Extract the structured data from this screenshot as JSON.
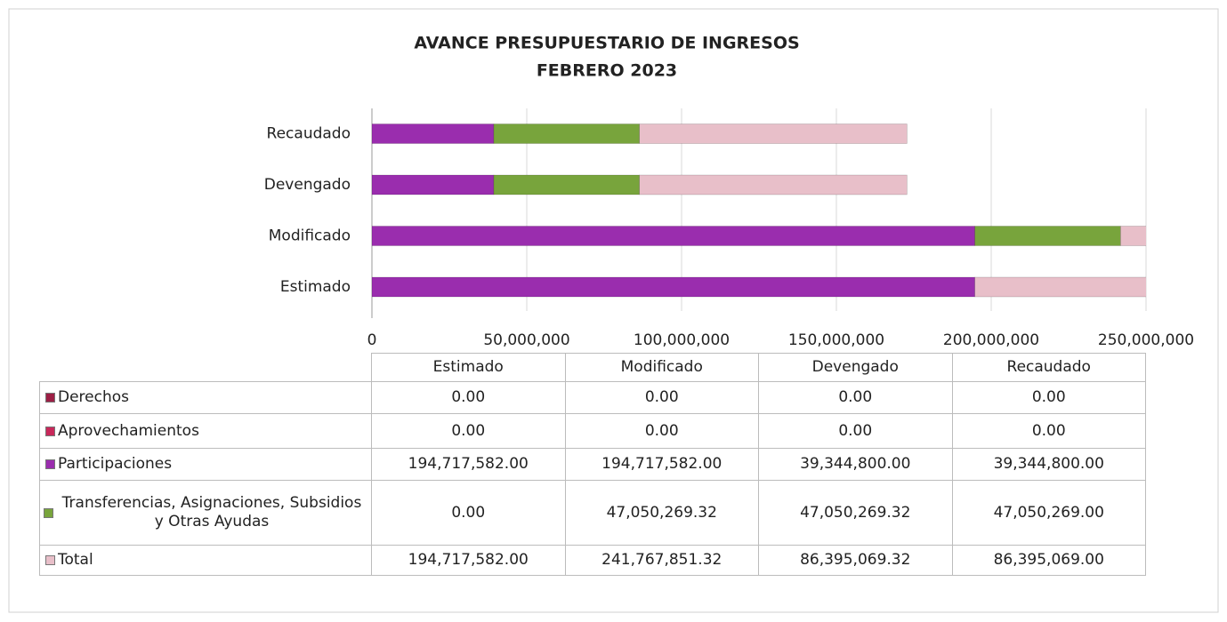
{
  "chart_data": {
    "type": "stacked-bar-horizontal",
    "title": "AVANCE PRESUPUESTARIO DE INGRESOS",
    "subtitle": "FEBRERO 2023",
    "categories": [
      "Estimado",
      "Modificado",
      "Devengado",
      "Recaudado"
    ],
    "series": [
      {
        "name": "Derechos",
        "color": "#9c1f45",
        "values": [
          0,
          0,
          0,
          0
        ],
        "value_labels": [
          "0.00",
          "0.00",
          "0.00",
          "0.00"
        ]
      },
      {
        "name": "Aprovechamientos",
        "color": "#c8285a",
        "values": [
          0,
          0,
          0,
          0
        ],
        "value_labels": [
          "0.00",
          "0.00",
          "0.00",
          "0.00"
        ]
      },
      {
        "name": "Participaciones",
        "color": "#9a2dae",
        "values": [
          194717582,
          194717582,
          39344800,
          39344800
        ],
        "value_labels": [
          "194,717,582.00",
          "194,717,582.00",
          "39,344,800.00",
          "39,344,800.00"
        ]
      },
      {
        "name": "Transferencias, Asignaciones, Subsidios y Otras Ayudas",
        "color": "#78a43c",
        "values": [
          0,
          47050269.32,
          47050269.32,
          47050269
        ],
        "value_labels": [
          "0.00",
          "47,050,269.32",
          "47,050,269.32",
          "47,050,269.00"
        ]
      },
      {
        "name": "Total",
        "color": "#e8bfc9",
        "values": [
          194717582,
          241767851.32,
          86395069.32,
          86395069
        ],
        "value_labels": [
          "194,717,582.00",
          "241,767,851.32",
          "86,395,069.32",
          "86,395,069.00"
        ]
      }
    ],
    "xlim": [
      0,
      250000000
    ],
    "xticks": [
      0,
      {
        "value": 50000000,
        "label": "50,000,000"
      },
      {
        "value": 100000000,
        "label": "100,000,000"
      },
      {
        "value": 150000000,
        "label": "150,000,000"
      },
      {
        "value": 200000000,
        "label": "200,000,000"
      },
      {
        "value": 250000000,
        "label": "250,000,000"
      }
    ],
    "grid": true
  }
}
